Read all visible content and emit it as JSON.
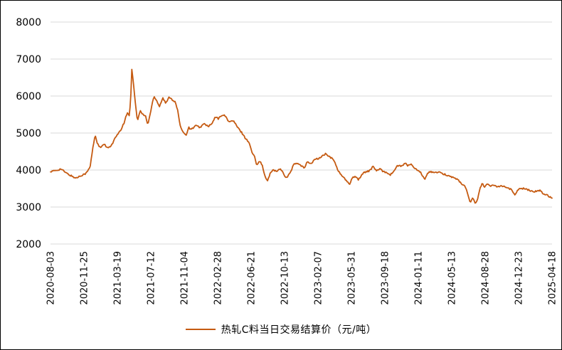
{
  "chart_data": {
    "type": "line",
    "title": "",
    "xlabel": "",
    "ylabel": "",
    "ylim": [
      2000,
      8000
    ],
    "y_ticks": [
      2000,
      3000,
      4000,
      5000,
      6000,
      7000,
      8000
    ],
    "x_tick_labels": [
      "2020-08-03",
      "2020-11-25",
      "2021-03-19",
      "2021-07-12",
      "2021-11-04",
      "2022-02-28",
      "2022-06-21",
      "2022-10-13",
      "2023-02-07",
      "2023-05-31",
      "2023-09-18",
      "2024-01-11",
      "2024-05-13",
      "2024-08-28",
      "2024-12-23",
      "2025-04-18"
    ],
    "x_range": [
      "2020-08-03",
      "2025-04-18"
    ],
    "grid": "horizontal",
    "legend_position": "bottom",
    "series": [
      {
        "name": "热轧C料当日交易结算价（元/吨）",
        "color": "#C55A11",
        "points_format": "[fraction_of_x_axis, price_yuan_per_ton]",
        "points": [
          [
            0.0,
            3950
          ],
          [
            0.011,
            3990
          ],
          [
            0.021,
            4030
          ],
          [
            0.031,
            3920
          ],
          [
            0.043,
            3830
          ],
          [
            0.051,
            3780
          ],
          [
            0.061,
            3855
          ],
          [
            0.071,
            3910
          ],
          [
            0.079,
            4080
          ],
          [
            0.085,
            4650
          ],
          [
            0.089,
            4950
          ],
          [
            0.094,
            4700
          ],
          [
            0.099,
            4600
          ],
          [
            0.108,
            4700
          ],
          [
            0.113,
            4580
          ],
          [
            0.122,
            4680
          ],
          [
            0.13,
            4890
          ],
          [
            0.139,
            5050
          ],
          [
            0.146,
            5250
          ],
          [
            0.153,
            5550
          ],
          [
            0.157,
            5480
          ],
          [
            0.16,
            5900
          ],
          [
            0.162,
            6750
          ],
          [
            0.165,
            6400
          ],
          [
            0.169,
            5850
          ],
          [
            0.173,
            5330
          ],
          [
            0.179,
            5600
          ],
          [
            0.184,
            5500
          ],
          [
            0.19,
            5450
          ],
          [
            0.194,
            5220
          ],
          [
            0.2,
            5600
          ],
          [
            0.206,
            6000
          ],
          [
            0.211,
            5900
          ],
          [
            0.217,
            5720
          ],
          [
            0.224,
            5950
          ],
          [
            0.23,
            5800
          ],
          [
            0.237,
            5980
          ],
          [
            0.243,
            5900
          ],
          [
            0.248,
            5850
          ],
          [
            0.254,
            5600
          ],
          [
            0.258,
            5200
          ],
          [
            0.264,
            5050
          ],
          [
            0.27,
            4930
          ],
          [
            0.275,
            5150
          ],
          [
            0.281,
            5100
          ],
          [
            0.289,
            5200
          ],
          [
            0.298,
            5150
          ],
          [
            0.306,
            5250
          ],
          [
            0.315,
            5180
          ],
          [
            0.322,
            5250
          ],
          [
            0.329,
            5440
          ],
          [
            0.335,
            5380
          ],
          [
            0.342,
            5500
          ],
          [
            0.349,
            5450
          ],
          [
            0.356,
            5300
          ],
          [
            0.365,
            5330
          ],
          [
            0.373,
            5150
          ],
          [
            0.382,
            5000
          ],
          [
            0.389,
            4850
          ],
          [
            0.396,
            4750
          ],
          [
            0.401,
            4500
          ],
          [
            0.407,
            4350
          ],
          [
            0.411,
            4150
          ],
          [
            0.417,
            4250
          ],
          [
            0.423,
            4100
          ],
          [
            0.428,
            3800
          ],
          [
            0.433,
            3710
          ],
          [
            0.438,
            3900
          ],
          [
            0.444,
            4020
          ],
          [
            0.451,
            3950
          ],
          [
            0.458,
            4050
          ],
          [
            0.465,
            3900
          ],
          [
            0.47,
            3780
          ],
          [
            0.477,
            3900
          ],
          [
            0.485,
            4150
          ],
          [
            0.492,
            4180
          ],
          [
            0.499,
            4120
          ],
          [
            0.506,
            4050
          ],
          [
            0.512,
            4240
          ],
          [
            0.519,
            4160
          ],
          [
            0.526,
            4280
          ],
          [
            0.535,
            4310
          ],
          [
            0.542,
            4380
          ],
          [
            0.549,
            4440
          ],
          [
            0.556,
            4350
          ],
          [
            0.563,
            4300
          ],
          [
            0.569,
            4150
          ],
          [
            0.574,
            3960
          ],
          [
            0.583,
            3820
          ],
          [
            0.59,
            3700
          ],
          [
            0.596,
            3610
          ],
          [
            0.601,
            3780
          ],
          [
            0.607,
            3840
          ],
          [
            0.614,
            3740
          ],
          [
            0.621,
            3880
          ],
          [
            0.628,
            3950
          ],
          [
            0.636,
            3980
          ],
          [
            0.643,
            4090
          ],
          [
            0.65,
            3990
          ],
          [
            0.657,
            4020
          ],
          [
            0.664,
            3960
          ],
          [
            0.671,
            3930
          ],
          [
            0.678,
            3870
          ],
          [
            0.685,
            3980
          ],
          [
            0.692,
            4120
          ],
          [
            0.699,
            4100
          ],
          [
            0.707,
            4180
          ],
          [
            0.712,
            4120
          ],
          [
            0.718,
            4160
          ],
          [
            0.723,
            4090
          ],
          [
            0.73,
            4000
          ],
          [
            0.738,
            3930
          ],
          [
            0.743,
            3830
          ],
          [
            0.746,
            3710
          ],
          [
            0.752,
            3930
          ],
          [
            0.759,
            3960
          ],
          [
            0.766,
            3920
          ],
          [
            0.773,
            3950
          ],
          [
            0.78,
            3900
          ],
          [
            0.789,
            3870
          ],
          [
            0.797,
            3830
          ],
          [
            0.806,
            3780
          ],
          [
            0.814,
            3720
          ],
          [
            0.821,
            3600
          ],
          [
            0.827,
            3560
          ],
          [
            0.833,
            3290
          ],
          [
            0.837,
            3130
          ],
          [
            0.841,
            3260
          ],
          [
            0.847,
            3090
          ],
          [
            0.851,
            3200
          ],
          [
            0.857,
            3520
          ],
          [
            0.861,
            3650
          ],
          [
            0.865,
            3550
          ],
          [
            0.871,
            3610
          ],
          [
            0.877,
            3560
          ],
          [
            0.884,
            3600
          ],
          [
            0.891,
            3550
          ],
          [
            0.898,
            3580
          ],
          [
            0.905,
            3560
          ],
          [
            0.912,
            3510
          ],
          [
            0.919,
            3470
          ],
          [
            0.926,
            3320
          ],
          [
            0.932,
            3480
          ],
          [
            0.939,
            3510
          ],
          [
            0.946,
            3490
          ],
          [
            0.955,
            3450
          ],
          [
            0.965,
            3420
          ],
          [
            0.975,
            3450
          ],
          [
            0.983,
            3360
          ],
          [
            0.991,
            3320
          ],
          [
            1.0,
            3240
          ]
        ]
      }
    ]
  },
  "colors": {
    "series": "#C55A11",
    "gridline": "#D9D9D9",
    "text": "#000000",
    "background": "#FFFFFF",
    "border": "#000000"
  }
}
